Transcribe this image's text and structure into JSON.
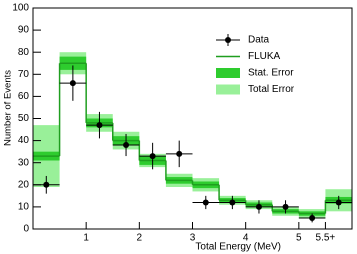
{
  "chart_data": {
    "type": "histogram",
    "x_label": "Total Energy (MeV)",
    "y_label": "Number of Events",
    "bins": [
      0,
      0.5,
      1,
      1.5,
      2,
      2.5,
      3,
      3.5,
      4,
      4.5,
      5,
      5.5,
      6
    ],
    "series": [
      {
        "name": "Data",
        "color": "#000000",
        "values": [
          20,
          66,
          47,
          38,
          33,
          34,
          12,
          12,
          10,
          10,
          5,
          12
        ],
        "errors": [
          4,
          8,
          6,
          5,
          6,
          6,
          3,
          3,
          3,
          3,
          2,
          3
        ]
      },
      {
        "name": "FLUKA",
        "color": "#1f9e1f",
        "values": [
          33,
          75,
          48,
          40,
          31,
          22,
          20,
          13,
          11,
          8,
          7,
          13
        ]
      },
      {
        "name": "Stat. Error",
        "color": "#2ecc2e",
        "values": [
          2,
          3,
          2,
          2,
          2,
          1.5,
          1.5,
          1,
          1,
          1,
          1,
          1.5
        ]
      },
      {
        "name": "Total Error",
        "color": "#99f099",
        "values": [
          14,
          5,
          4,
          4,
          3,
          3,
          3,
          2,
          2,
          2,
          2,
          5
        ]
      }
    ],
    "xlim": [
      0,
      6
    ],
    "ylim": [
      0,
      100
    ],
    "xticks": [
      1,
      2,
      3,
      4,
      5,
      {
        "value": 5.5,
        "label": "5.5+"
      }
    ],
    "yticks": [
      0,
      10,
      20,
      30,
      40,
      50,
      60,
      70,
      80,
      90,
      100
    ]
  }
}
